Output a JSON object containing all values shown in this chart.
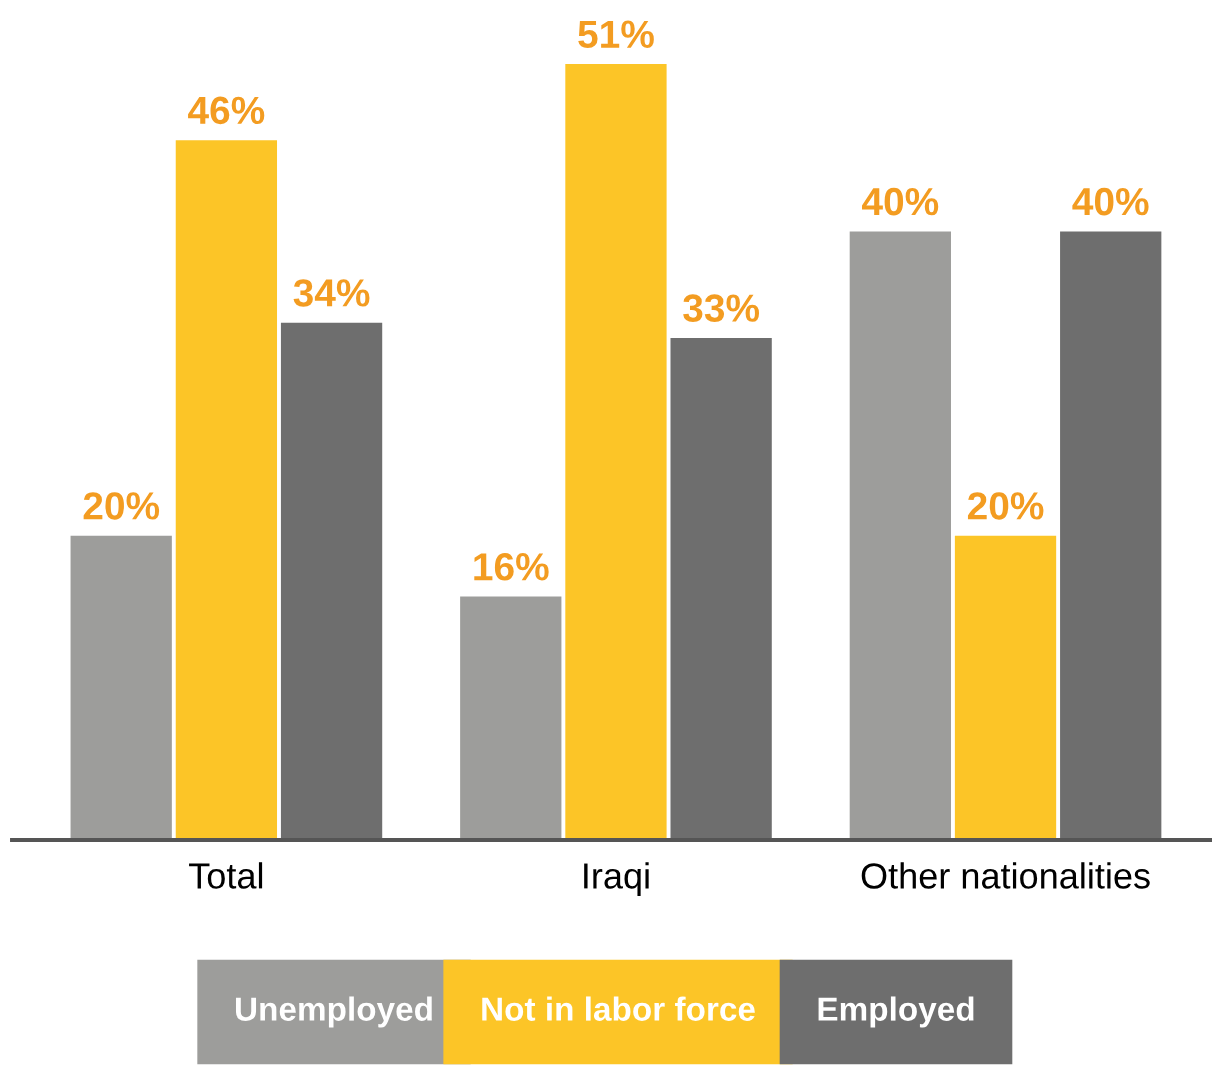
{
  "chart_data": {
    "type": "bar",
    "categories": [
      "Total",
      "Iraqi",
      "Other nationalities"
    ],
    "series": [
      {
        "name": "Unemployed",
        "color": "#9d9d9b",
        "values": [
          20,
          16,
          40
        ],
        "value_labels": [
          "20%",
          "16%",
          "40%"
        ]
      },
      {
        "name": "Not in labor force",
        "color": "#fcc527",
        "values": [
          46,
          51,
          20
        ],
        "value_labels": [
          "46%",
          "51%",
          "20%"
        ]
      },
      {
        "name": "Employed",
        "color": "#6e6e6e",
        "values": [
          34,
          33,
          40
        ],
        "value_labels": [
          "34%",
          "33%",
          "40%"
        ]
      }
    ],
    "legend": "bottom",
    "grid": false,
    "tick_labels": "x"
  }
}
